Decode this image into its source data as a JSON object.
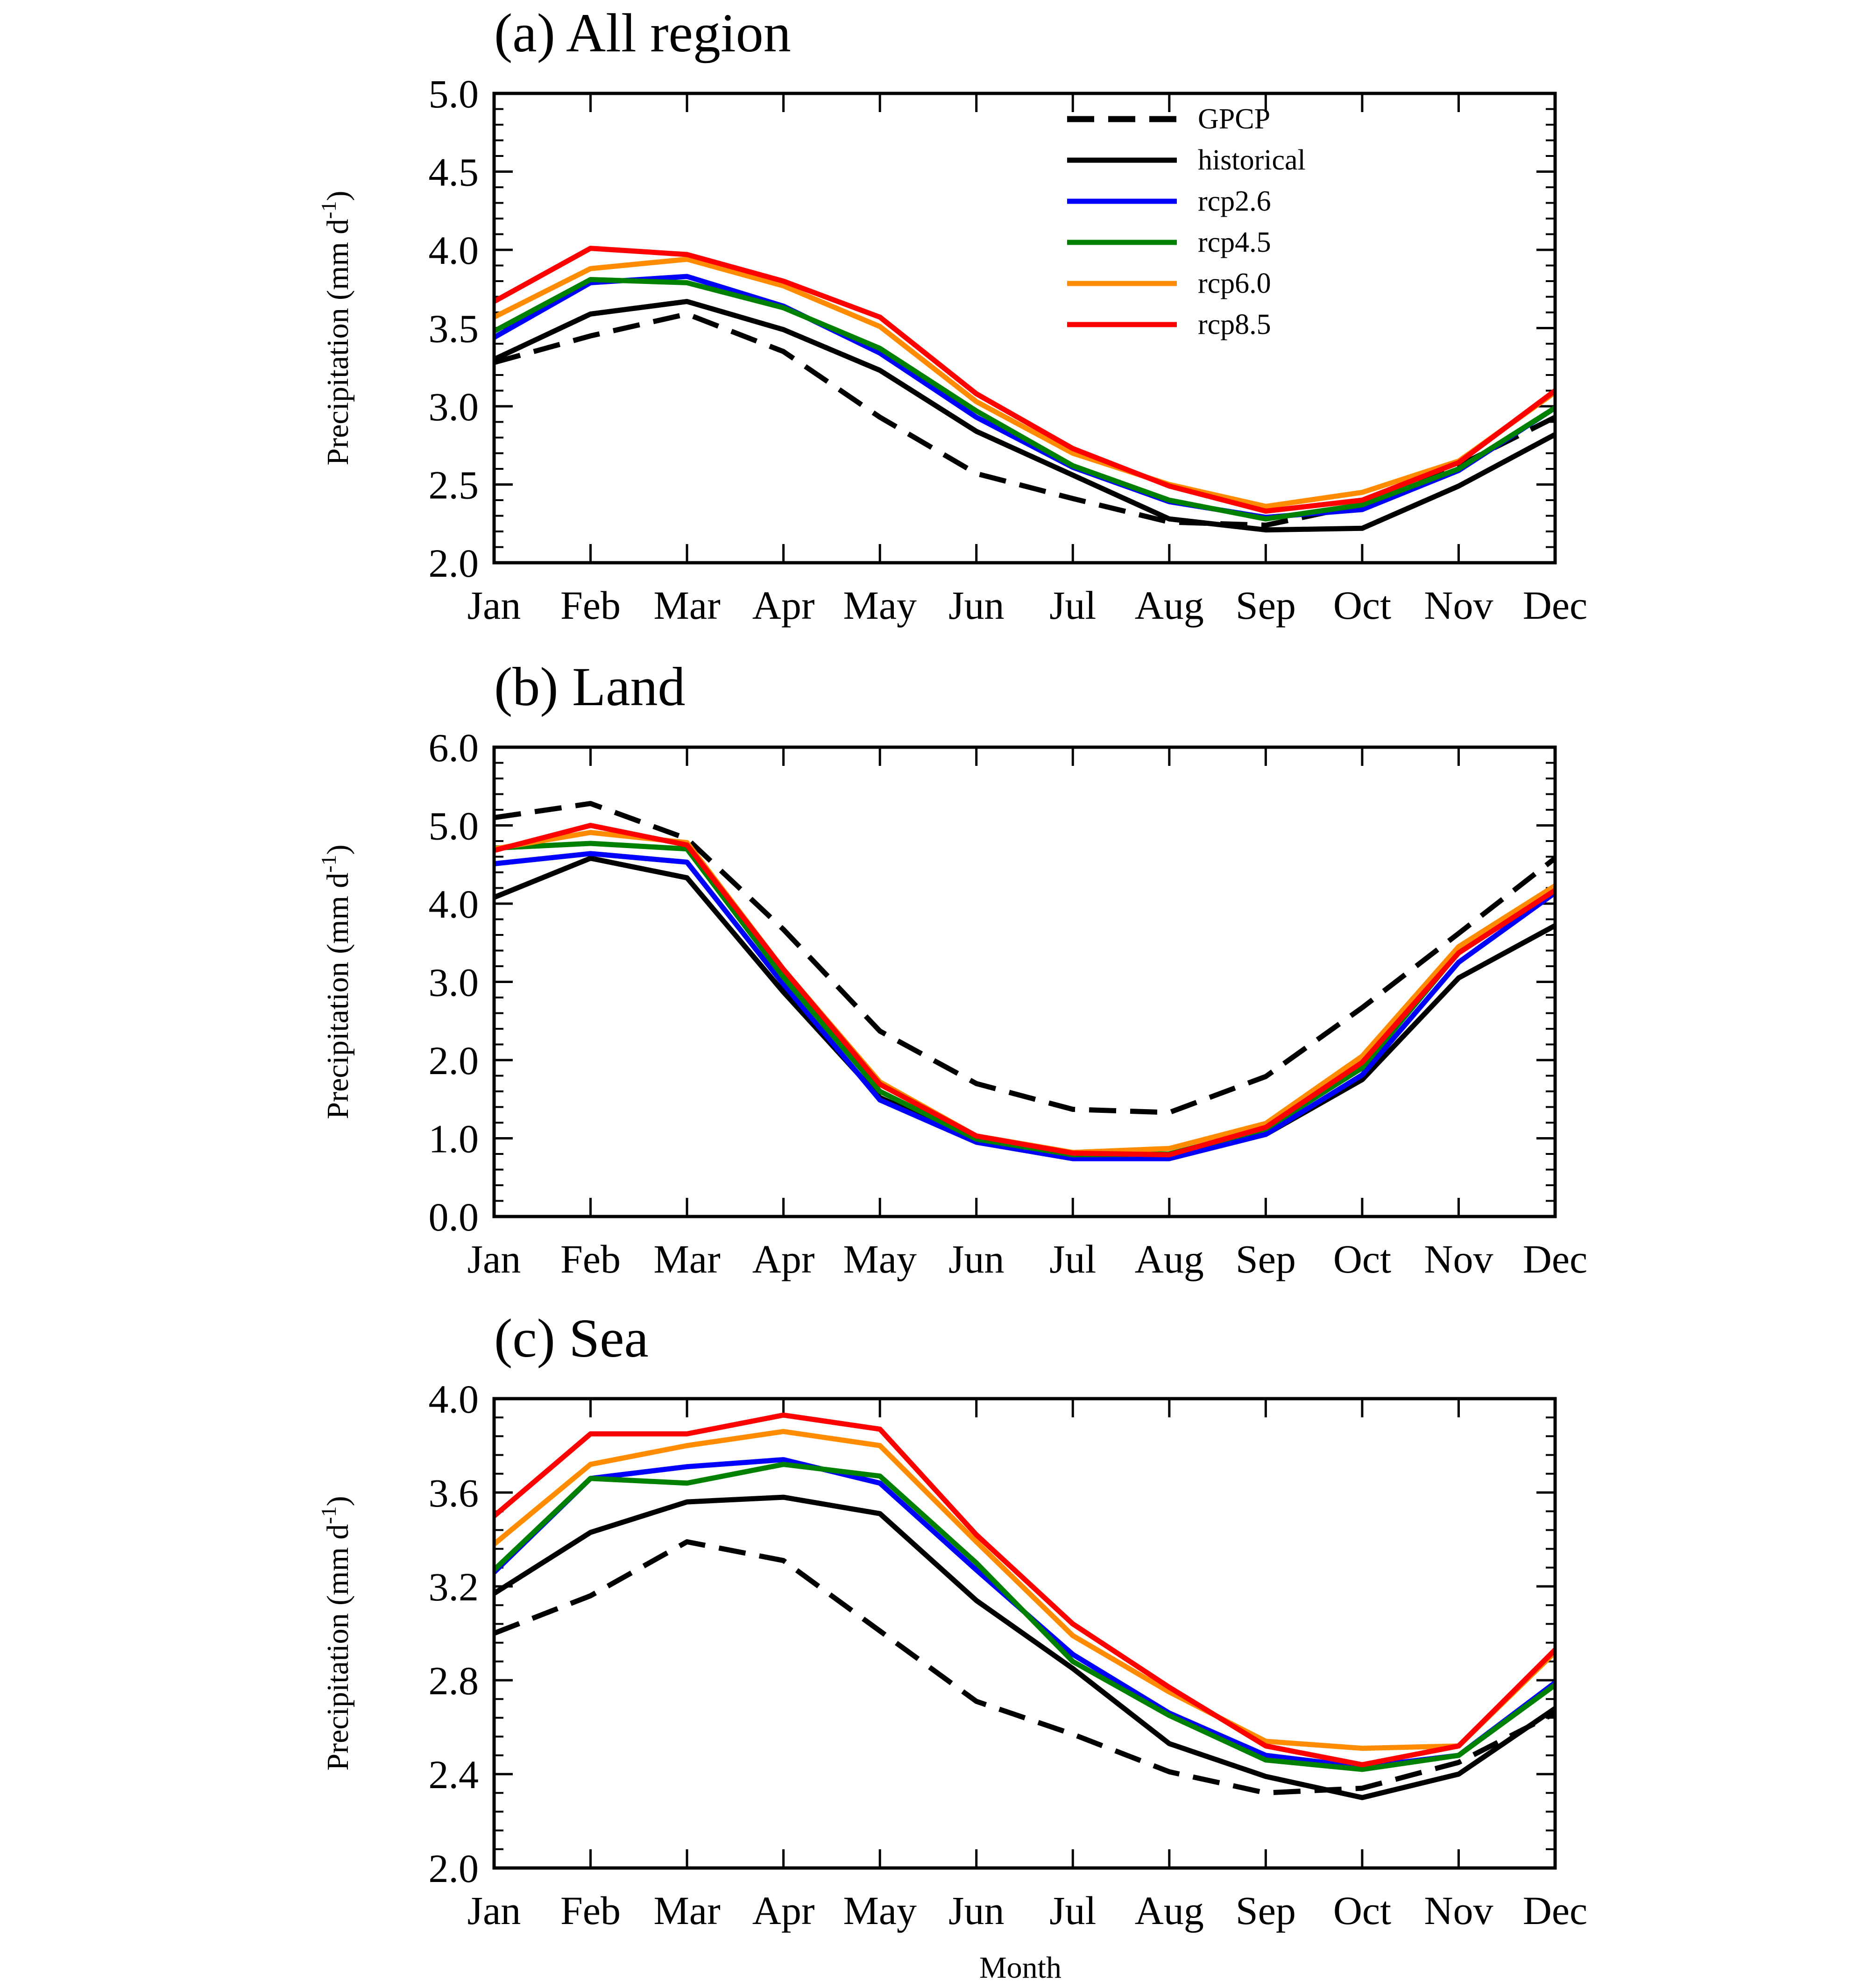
{
  "figure": {
    "xlabel": "Month"
  },
  "legend": {
    "placement": "top-right of panel (a)",
    "entries": [
      {
        "label": "GPCP",
        "color": "#000000",
        "dashed": true
      },
      {
        "label": "historical",
        "color": "#000000",
        "dashed": false
      },
      {
        "label": "rcp2.6",
        "color": "#0000ff",
        "dashed": false
      },
      {
        "label": "rcp4.5",
        "color": "#008000",
        "dashed": false
      },
      {
        "label": "rcp6.0",
        "color": "#ff8c00",
        "dashed": false
      },
      {
        "label": "rcp8.5",
        "color": "#ff0000",
        "dashed": false
      }
    ]
  },
  "chart_data": [
    {
      "type": "line",
      "title": "(a) All region",
      "ylabel": "Precipitation (mm d-1)",
      "ylabel_main": "Precipitation (mm d",
      "ylabel_sup": "-1",
      "ylabel_close": ")",
      "ylim": [
        2.0,
        5.0
      ],
      "yticks": [
        "2.0",
        "2.5",
        "3.0",
        "3.5",
        "4.0",
        "4.5",
        "5.0"
      ],
      "minor_step": 0.1,
      "grid": false,
      "categories": [
        "Jan",
        "Feb",
        "Mar",
        "Apr",
        "May",
        "Jun",
        "Jul",
        "Aug",
        "Sep",
        "Oct",
        "Nov",
        "Dec"
      ],
      "series": [
        {
          "name": "GPCP",
          "values": [
            3.28,
            3.45,
            3.59,
            3.35,
            2.93,
            2.57,
            2.41,
            2.26,
            2.24,
            2.37,
            2.62,
            2.93
          ]
        },
        {
          "name": "historical",
          "values": [
            3.3,
            3.59,
            3.67,
            3.49,
            3.23,
            2.84,
            2.56,
            2.28,
            2.21,
            2.22,
            2.49,
            2.82
          ]
        },
        {
          "name": "rcp2.6",
          "values": [
            3.44,
            3.79,
            3.83,
            3.64,
            3.34,
            2.93,
            2.61,
            2.39,
            2.29,
            2.34,
            2.59,
            2.99
          ]
        },
        {
          "name": "rcp4.5",
          "values": [
            3.48,
            3.81,
            3.79,
            3.63,
            3.37,
            2.97,
            2.62,
            2.4,
            2.28,
            2.37,
            2.6,
            2.99
          ]
        },
        {
          "name": "rcp6.0",
          "values": [
            3.57,
            3.88,
            3.94,
            3.77,
            3.51,
            3.03,
            2.7,
            2.5,
            2.36,
            2.45,
            2.65,
            3.09
          ]
        },
        {
          "name": "rcp8.5",
          "values": [
            3.67,
            4.01,
            3.97,
            3.8,
            3.57,
            3.08,
            2.73,
            2.49,
            2.33,
            2.4,
            2.64,
            3.1
          ]
        }
      ]
    },
    {
      "type": "line",
      "title": "(b) Land",
      "ylabel": "Precipitation (mm d-1)",
      "ylabel_main": "Precipitation (mm d",
      "ylabel_sup": "-1",
      "ylabel_close": ")",
      "ylim": [
        0.0,
        6.0
      ],
      "yticks": [
        "0.0",
        "1.0",
        "2.0",
        "3.0",
        "4.0",
        "5.0",
        "6.0"
      ],
      "minor_step": 0.2,
      "grid": false,
      "categories": [
        "Jan",
        "Feb",
        "Mar",
        "Apr",
        "May",
        "Jun",
        "Jul",
        "Aug",
        "Sep",
        "Oct",
        "Nov",
        "Dec"
      ],
      "series": [
        {
          "name": "GPCP",
          "values": [
            5.1,
            5.28,
            4.83,
            3.67,
            2.37,
            1.7,
            1.37,
            1.33,
            1.79,
            2.67,
            3.62,
            4.58
          ]
        },
        {
          "name": "historical",
          "values": [
            4.08,
            4.58,
            4.33,
            2.87,
            1.52,
            0.97,
            0.79,
            0.76,
            1.05,
            1.75,
            3.05,
            3.72
          ]
        },
        {
          "name": "rcp2.6",
          "values": [
            4.51,
            4.64,
            4.53,
            2.97,
            1.49,
            0.95,
            0.74,
            0.74,
            1.05,
            1.81,
            3.25,
            4.14
          ]
        },
        {
          "name": "rcp4.5",
          "values": [
            4.71,
            4.77,
            4.7,
            3.06,
            1.6,
            0.99,
            0.79,
            0.8,
            1.12,
            1.9,
            3.38,
            4.18
          ]
        },
        {
          "name": "rcp6.0",
          "values": [
            4.7,
            4.91,
            4.78,
            3.16,
            1.72,
            1.03,
            0.82,
            0.87,
            1.19,
            2.05,
            3.45,
            4.23
          ]
        },
        {
          "name": "rcp8.5",
          "values": [
            4.68,
            5.0,
            4.75,
            3.16,
            1.69,
            1.03,
            0.81,
            0.79,
            1.14,
            1.97,
            3.37,
            4.17
          ]
        }
      ]
    },
    {
      "type": "line",
      "title": "(c) Sea",
      "ylabel": "Precipitation (mm d-1)",
      "ylabel_main": "Precipitation (mm d",
      "ylabel_sup": "-1",
      "ylabel_close": ")",
      "ylim": [
        2.0,
        4.0
      ],
      "yticks": [
        "2.0",
        "2.4",
        "2.8",
        "3.2",
        "3.6",
        "4.0"
      ],
      "minor_step": 0.08,
      "grid": false,
      "categories": [
        "Jan",
        "Feb",
        "Mar",
        "Apr",
        "May",
        "Jun",
        "Jul",
        "Aug",
        "Sep",
        "Oct",
        "Nov",
        "Dec"
      ],
      "series": [
        {
          "name": "GPCP",
          "values": [
            3.0,
            3.16,
            3.39,
            3.31,
            3.01,
            2.71,
            2.57,
            2.41,
            2.32,
            2.34,
            2.45,
            2.66
          ]
        },
        {
          "name": "historical",
          "values": [
            3.17,
            3.43,
            3.56,
            3.58,
            3.51,
            3.14,
            2.85,
            2.53,
            2.39,
            2.3,
            2.4,
            2.68
          ]
        },
        {
          "name": "rcp2.6",
          "values": [
            3.26,
            3.66,
            3.71,
            3.74,
            3.64,
            3.27,
            2.91,
            2.66,
            2.48,
            2.43,
            2.48,
            2.79
          ]
        },
        {
          "name": "rcp4.5",
          "values": [
            3.27,
            3.66,
            3.64,
            3.72,
            3.67,
            3.3,
            2.88,
            2.65,
            2.46,
            2.42,
            2.48,
            2.78
          ]
        },
        {
          "name": "rcp6.0",
          "values": [
            3.38,
            3.72,
            3.8,
            3.86,
            3.8,
            3.39,
            2.99,
            2.75,
            2.54,
            2.51,
            2.52,
            2.92
          ]
        },
        {
          "name": "rcp8.5",
          "values": [
            3.5,
            3.85,
            3.85,
            3.93,
            3.87,
            3.42,
            3.04,
            2.77,
            2.52,
            2.44,
            2.52,
            2.93
          ]
        }
      ]
    }
  ]
}
